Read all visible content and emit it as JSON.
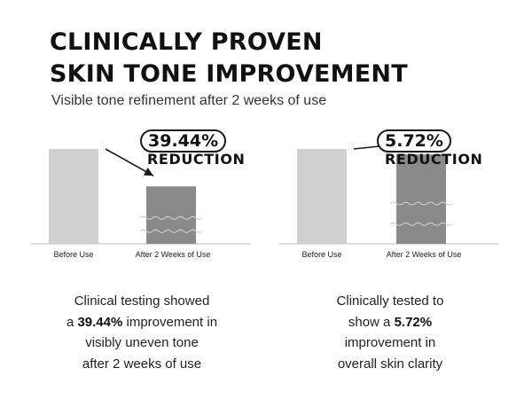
{
  "header": {
    "title_line1": "CLINICALLY PROVEN",
    "title_line2": "SKIN TONE IMPROVEMENT",
    "subtitle": "Visible tone refinement after 2 weeks of use"
  },
  "chart_data": [
    {
      "type": "bar",
      "categories": [
        "Before Use",
        "After 2 Weeks of Use"
      ],
      "values": [
        100,
        60.56
      ],
      "callout_value": "39.44%",
      "callout_label": "REDUCTION",
      "colors": [
        "#d0d0d0",
        "#8a8a8a"
      ],
      "caption": {
        "line1": "Clinical testing showed",
        "line2_pre": "a ",
        "line2_bold": "39.44%",
        "line2_post": " improvement in",
        "line3": "visibly uneven tone",
        "line4": "after 2 weeks of use"
      }
    },
    {
      "type": "bar",
      "categories": [
        "Before Use",
        "After 2 Weeks of Use"
      ],
      "values": [
        100,
        94.28
      ],
      "callout_value": "5.72%",
      "callout_label": "REDUCTION",
      "colors": [
        "#d0d0d0",
        "#8a8a8a"
      ],
      "caption": {
        "line1": "Clinically tested to",
        "line2_pre": "show a ",
        "line2_bold": "5.72%",
        "line2_post": "",
        "line3": "improvement in",
        "line4": "overall skin clarity"
      }
    }
  ]
}
